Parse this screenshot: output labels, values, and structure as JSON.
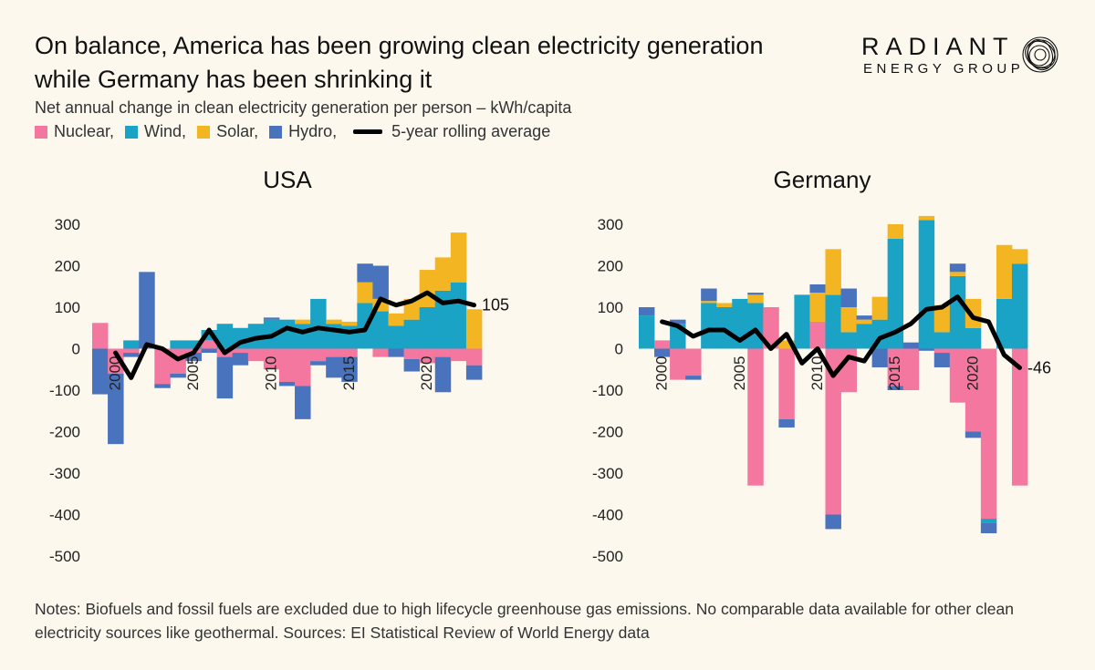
{
  "header": {
    "title_line1": "On balance, America has been growing clean electricity generation",
    "title_line2": "while Germany has been shrinking it",
    "subtitle": "Net annual change in clean electricity generation per person – kWh/capita"
  },
  "brand": {
    "name_top": "RADIANT",
    "name_bottom": "ENERGY GROUP",
    "logo_icon": "concentric-circle-scribble-icon"
  },
  "legend": {
    "nuclear": "Nuclear,",
    "wind": "Wind,",
    "solar": "Solar,",
    "hydro": "Hydro,",
    "rolling": "5-year rolling average"
  },
  "colors": {
    "nuclear": "#f3779f",
    "wind": "#1ba3c6",
    "solar": "#f4b522",
    "hydro": "#4a73bd",
    "line": "#000000",
    "background": "#fcf8ee"
  },
  "notes": "Notes: Biofuels and fossil fuels are excluded due to high lifecycle greenhouse gas emissions. No comparable data available for other clean electricity sources like geothermal. Sources: EI Statistical Review of World Energy data",
  "chart_data": [
    {
      "type": "bar",
      "stacked": true,
      "title": "USA",
      "ylim": [
        -500,
        300
      ],
      "yticks": [
        300,
        200,
        100,
        0,
        -100,
        -200,
        -300,
        -400,
        -500
      ],
      "xticks": [
        2000,
        2005,
        2010,
        2015,
        2020
      ],
      "years": [
        1999,
        2000,
        2001,
        2002,
        2003,
        2004,
        2005,
        2006,
        2007,
        2008,
        2009,
        2010,
        2011,
        2012,
        2013,
        2014,
        2015,
        2016,
        2017,
        2018,
        2019,
        2020,
        2021,
        2022,
        2023
      ],
      "series": [
        {
          "name": "Nuclear",
          "key": "nuclear",
          "values": [
            62,
            -60,
            -10,
            0,
            -85,
            -60,
            -10,
            20,
            -20,
            -10,
            -30,
            -50,
            -80,
            -90,
            -30,
            -20,
            -20,
            0,
            -20,
            0,
            -25,
            -35,
            -20,
            -30,
            -40
          ]
        },
        {
          "name": "Wind",
          "key": "wind",
          "values": [
            0,
            0,
            20,
            0,
            0,
            20,
            20,
            25,
            60,
            50,
            60,
            70,
            70,
            60,
            120,
            60,
            55,
            110,
            90,
            55,
            70,
            100,
            140,
            160,
            0
          ]
        },
        {
          "name": "Solar",
          "key": "solar",
          "values": [
            0,
            0,
            0,
            0,
            0,
            0,
            0,
            0,
            0,
            0,
            0,
            0,
            0,
            10,
            0,
            10,
            10,
            50,
            30,
            30,
            50,
            90,
            80,
            120,
            95
          ]
        },
        {
          "name": "Hydro",
          "key": "hydro",
          "values": [
            -110,
            -170,
            -10,
            185,
            -10,
            -10,
            -20,
            -10,
            -100,
            -30,
            0,
            5,
            -10,
            -80,
            -10,
            -50,
            -60,
            45,
            80,
            -20,
            -30,
            0,
            -85,
            0,
            -35
          ]
        }
      ],
      "rolling_average": [
        -10,
        -70,
        10,
        0,
        -25,
        -10,
        45,
        -10,
        15,
        25,
        30,
        50,
        40,
        50,
        45,
        40,
        45,
        120,
        105,
        115,
        135,
        110,
        115,
        105
      ],
      "end_label": "105"
    },
    {
      "type": "bar",
      "stacked": true,
      "title": "Germany",
      "ylim": [
        -500,
        300
      ],
      "yticks": [
        300,
        200,
        100,
        0,
        -100,
        -200,
        -300,
        -400,
        -500
      ],
      "xticks": [
        2000,
        2005,
        2010,
        2015,
        2020
      ],
      "years": [
        1999,
        2000,
        2001,
        2002,
        2003,
        2004,
        2005,
        2006,
        2007,
        2008,
        2009,
        2010,
        2011,
        2012,
        2013,
        2014,
        2015,
        2016,
        2017,
        2018,
        2019,
        2020,
        2021,
        2022,
        2023
      ],
      "series": [
        {
          "name": "Nuclear",
          "key": "nuclear",
          "values": [
            0,
            20,
            -75,
            -65,
            0,
            0,
            0,
            -330,
            100,
            -170,
            0,
            65,
            -400,
            -105,
            0,
            0,
            -90,
            -100,
            0,
            -10,
            -130,
            -200,
            -410,
            0,
            -330
          ]
        },
        {
          "name": "Wind",
          "key": "wind",
          "values": [
            80,
            0,
            60,
            0,
            110,
            100,
            120,
            110,
            0,
            0,
            130,
            0,
            130,
            40,
            60,
            70,
            265,
            0,
            310,
            40,
            175,
            50,
            -10,
            120,
            205
          ]
        },
        {
          "name": "Solar",
          "key": "solar",
          "values": [
            0,
            0,
            0,
            0,
            5,
            10,
            0,
            20,
            0,
            20,
            0,
            70,
            110,
            60,
            10,
            55,
            35,
            0,
            10,
            65,
            10,
            70,
            0,
            130,
            35
          ]
        },
        {
          "name": "Hydro",
          "key": "hydro",
          "values": [
            20,
            -20,
            10,
            -10,
            30,
            0,
            0,
            5,
            0,
            -20,
            0,
            20,
            -35,
            45,
            10,
            -45,
            -10,
            15,
            -5,
            -35,
            20,
            -15,
            -25,
            0,
            0
          ]
        }
      ],
      "rolling_average": [
        65,
        55,
        30,
        45,
        45,
        20,
        45,
        0,
        35,
        -35,
        0,
        -65,
        -20,
        -30,
        25,
        40,
        60,
        95,
        100,
        125,
        75,
        65,
        -15,
        -46
      ],
      "end_label": "-46"
    }
  ]
}
